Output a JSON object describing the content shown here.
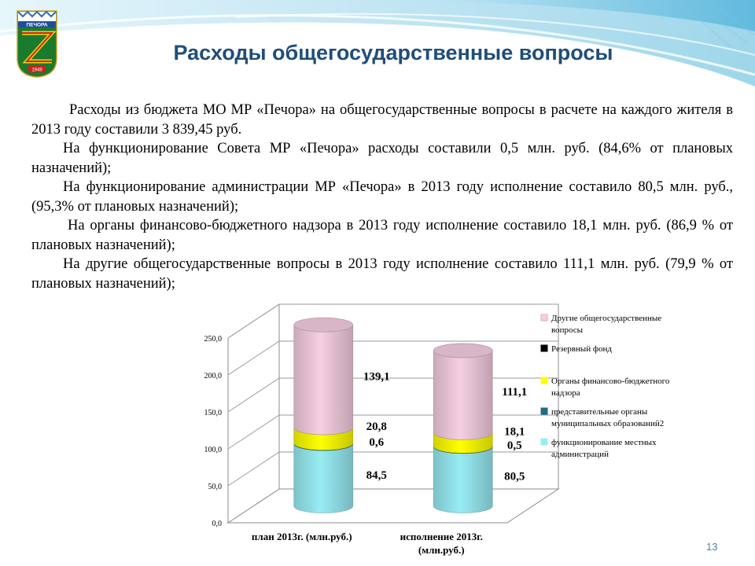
{
  "title": "Расходы общегосударственные вопросы",
  "logo": {
    "text": "ПЕЧОРА",
    "year": "1949"
  },
  "paragraphs": [
    "Расходы из бюджета МО МР «Печора» на общегосударственные вопросы в расчете на каждого жителя в 2013 году составили 3 839,45 руб.",
    "На функционирование Совета МР «Печора» расходы составили 0,5 млн. руб. (84,6% от плановых назначений);",
    "На функционирование администрации МР «Печора» в 2013 году исполнение составило 80,5 млн. руб., (95,3% от плановых назначений);",
    "На органы финансово-бюджетного надзора в 2013 году исполнение составило 18,1 млн. руб. (86,9 % от плановых назначений);",
    "На другие общегосударственные вопросы в 2013 году исполнение составило 111,1 млн. руб. (79,9 % от плановых назначений);"
  ],
  "page_number": "13",
  "chart_data": {
    "type": "bar",
    "stacked": true,
    "three_d": true,
    "categories": [
      "план 2013г. (млн.руб.)",
      "исполнение 2013г. (млн.руб.)"
    ],
    "ylim": [
      0,
      250
    ],
    "yticks": [
      "0,0",
      "50,0",
      "100,0",
      "150,0",
      "200,0",
      "250,0"
    ],
    "grid": true,
    "legend_position": "right",
    "series": [
      {
        "name": "функционирование местных администраций",
        "values": [
          84.5,
          80.5
        ],
        "labels": [
          "84,5",
          "80,5"
        ],
        "color": "#99ecf4"
      },
      {
        "name": "представительные органы муниципальных образований2",
        "values": [
          0.6,
          0.5
        ],
        "labels": [
          "0,6",
          "0,5"
        ],
        "color": "#1f6b85"
      },
      {
        "name": "Органы финансово-бюджетного надзора",
        "values": [
          20.8,
          18.1
        ],
        "labels": [
          "20,8",
          "18,1"
        ],
        "color": "#ffff00"
      },
      {
        "name": "Резервный фонд",
        "values": [
          0,
          0
        ],
        "labels": [
          "",
          ""
        ],
        "color": "#000000"
      },
      {
        "name": "Другие общегосударственные вопросы",
        "values": [
          139.1,
          111.1
        ],
        "labels": [
          "139,1",
          "111,1"
        ],
        "color": "#f6cfe2"
      }
    ],
    "legend_order": [
      4,
      3,
      2,
      1,
      0
    ]
  }
}
